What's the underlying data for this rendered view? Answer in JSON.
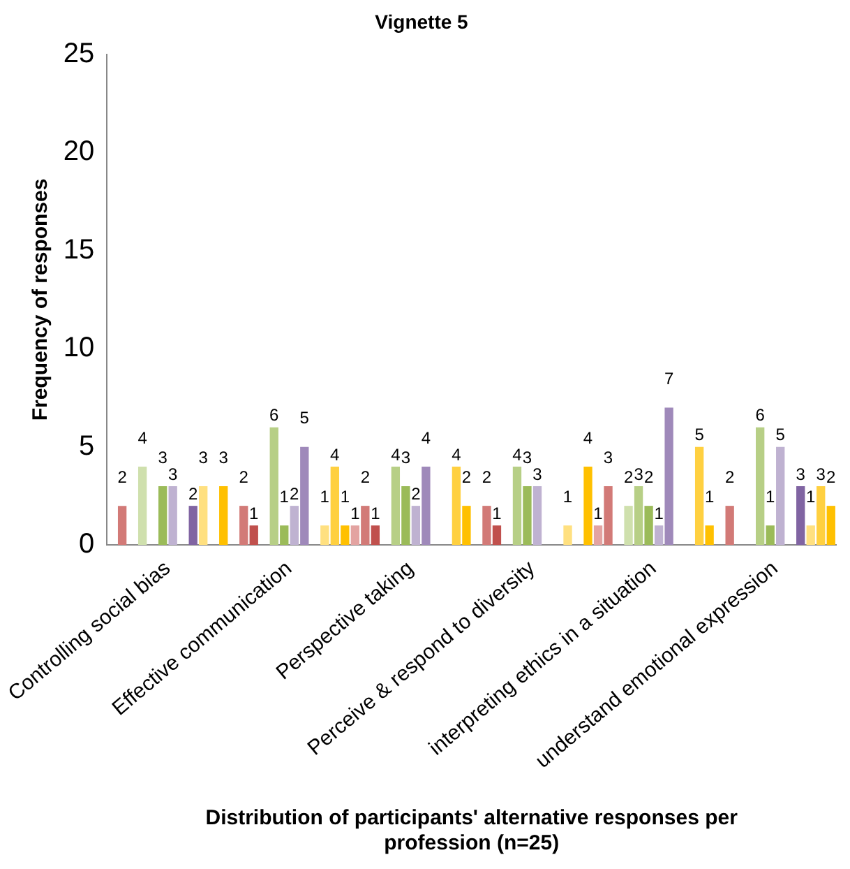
{
  "chart_data": {
    "type": "bar",
    "title": "Vignette 5",
    "xlabel": "Distribution of participants' alternative responses per profession (n=25)",
    "ylabel": "Frequency of responses",
    "categories": [
      "Controlling social bias",
      "Effective communication",
      "Perspective taking",
      "Perceive & respond to diversity",
      "interpreting ethics in a situation",
      "understand emotional expression"
    ],
    "series": [
      {
        "color": "#e3a3a1",
        "values": [
          null,
          null,
          1,
          null,
          1,
          null
        ]
      },
      {
        "color": "#d27a77",
        "values": [
          2,
          2,
          2,
          2,
          3,
          2
        ]
      },
      {
        "color": "#c0504d",
        "values": [
          null,
          1,
          1,
          1,
          null,
          null
        ]
      },
      {
        "color": "#cfe0ad",
        "values": [
          4,
          null,
          null,
          null,
          2,
          null
        ]
      },
      {
        "color": "#b7cf86",
        "values": [
          null,
          6,
          4,
          4,
          3,
          6
        ]
      },
      {
        "color": "#9bbb59",
        "values": [
          3,
          1,
          3,
          3,
          2,
          1
        ]
      },
      {
        "color": "#bfb2d1",
        "values": [
          3,
          2,
          2,
          3,
          1,
          5
        ]
      },
      {
        "color": "#9f89ba",
        "values": [
          null,
          5,
          4,
          null,
          7,
          null
        ]
      },
      {
        "color": "#8064a2",
        "values": [
          2,
          null,
          null,
          null,
          null,
          3
        ]
      },
      {
        "color": "#ffe080",
        "values": [
          3,
          1,
          null,
          1,
          null,
          1
        ]
      },
      {
        "color": "#ffd040",
        "values": [
          null,
          4,
          4,
          null,
          5,
          3
        ]
      },
      {
        "color": "#ffc000",
        "values": [
          3,
          1,
          2,
          4,
          1,
          2
        ]
      }
    ],
    "ylim": [
      0,
      25
    ],
    "yticks": [
      0,
      5,
      10,
      15,
      20,
      25
    ],
    "grid": false,
    "legend": false,
    "data_labels": true
  }
}
